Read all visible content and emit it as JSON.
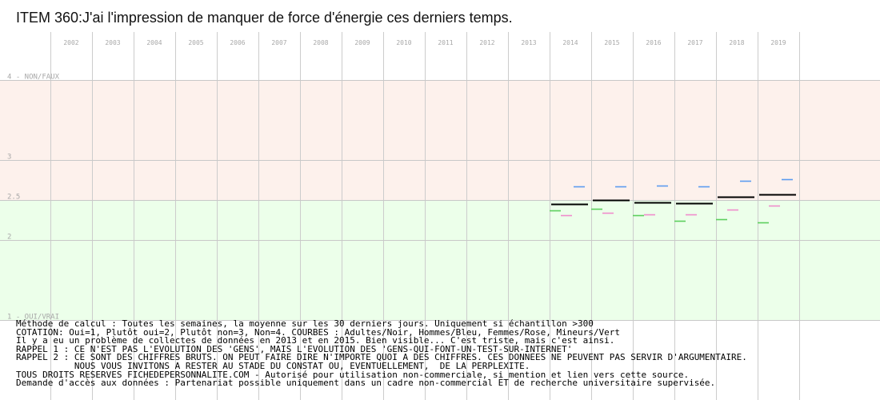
{
  "title": "ITEM 360:J'ai l'impression de manquer de force d'énergie ces derniers temps.",
  "chart_data": {
    "type": "line",
    "title": "ITEM 360:J'ai l'impression de manquer de force d'énergie ces derniers temps.",
    "years": [
      "2002",
      "2003",
      "2004",
      "2005",
      "2006",
      "2007",
      "2008",
      "2009",
      "2010",
      "2011",
      "2012",
      "2013",
      "2014",
      "2015",
      "2016",
      "2017",
      "2018",
      "2019"
    ],
    "y_ticks": [
      {
        "value": 4,
        "label": "4 - NON/FAUX"
      },
      {
        "value": 3,
        "label": "3"
      },
      {
        "value": 2.5,
        "label": "2.5"
      },
      {
        "value": 2,
        "label": "2"
      },
      {
        "value": 1,
        "label": "1 - OUI/VRAI"
      }
    ],
    "ylim": [
      1,
      4
    ],
    "grid": true,
    "series": [
      {
        "name": "Adultes",
        "color": "#000000",
        "values": [
          null,
          null,
          null,
          null,
          null,
          null,
          null,
          null,
          null,
          null,
          null,
          null,
          2.45,
          2.5,
          2.47,
          2.46,
          2.54,
          2.57
        ]
      },
      {
        "name": "Hommes",
        "color": "#5b9bf0",
        "values": [
          null,
          null,
          null,
          null,
          null,
          null,
          null,
          null,
          null,
          null,
          null,
          null,
          2.67,
          2.67,
          2.68,
          2.67,
          2.74,
          2.76
        ]
      },
      {
        "name": "Femmes",
        "color": "#f08ccc",
        "values": [
          null,
          null,
          null,
          null,
          null,
          null,
          null,
          null,
          null,
          null,
          null,
          null,
          2.31,
          2.34,
          2.32,
          2.32,
          2.38,
          2.43
        ]
      },
      {
        "name": "Mineurs",
        "color": "#5ccf5c",
        "values": [
          null,
          null,
          null,
          null,
          null,
          null,
          null,
          null,
          null,
          null,
          null,
          null,
          2.37,
          2.39,
          2.31,
          2.24,
          2.26,
          2.22
        ]
      }
    ],
    "bands": {
      "upper_color": "#fdf1ec",
      "lower_color": "#ecffea"
    }
  },
  "notes": [
    "Méthode de calcul : Toutes les semaines, la moyenne sur les 30 derniers jours. Uniquement si échantillon >300",
    "COTATION: Oui=1, Plutôt oui=2, Plutôt non=3, Non=4. COURBES : Adultes/Noir, Hommes/Bleu, Femmes/Rose, Mineurs/Vert",
    "Il y a eu un problème de collectes de données en 2013 et en 2015. Bien visible... C'est triste, mais c'est ainsi.",
    "RAPPEL 1 : CE N'EST PAS L'EVOLUTION DES 'GENS', MAIS L'EVOLUTION DES 'GENS-QUI-FONT-UN-TEST-SUR-INTERNET'",
    "RAPPEL 2 : CE SONT DES CHIFFRES BRUTS. ON PEUT FAIRE DIRE N'IMPORTE QUOI A DES CHIFFRES. CES DONNEES NE PEUVENT PAS SERVIR D'ARGUMENTAIRE.",
    "           NOUS VOUS INVITONS A RESTER AU STADE DU CONSTAT OU, EVENTUELLEMENT,  DE LA PERPLEXITE.",
    "TOUS DROITS RESERVES FICHEDEPERSONNALITE.COM - Autorisé pour utilisation non-commerciale, si mention et lien vers cette source.",
    "Demande d'accès aux données : Partenariat possible uniquement dans un cadre non-commercial ET de recherche universitaire supervisée."
  ]
}
